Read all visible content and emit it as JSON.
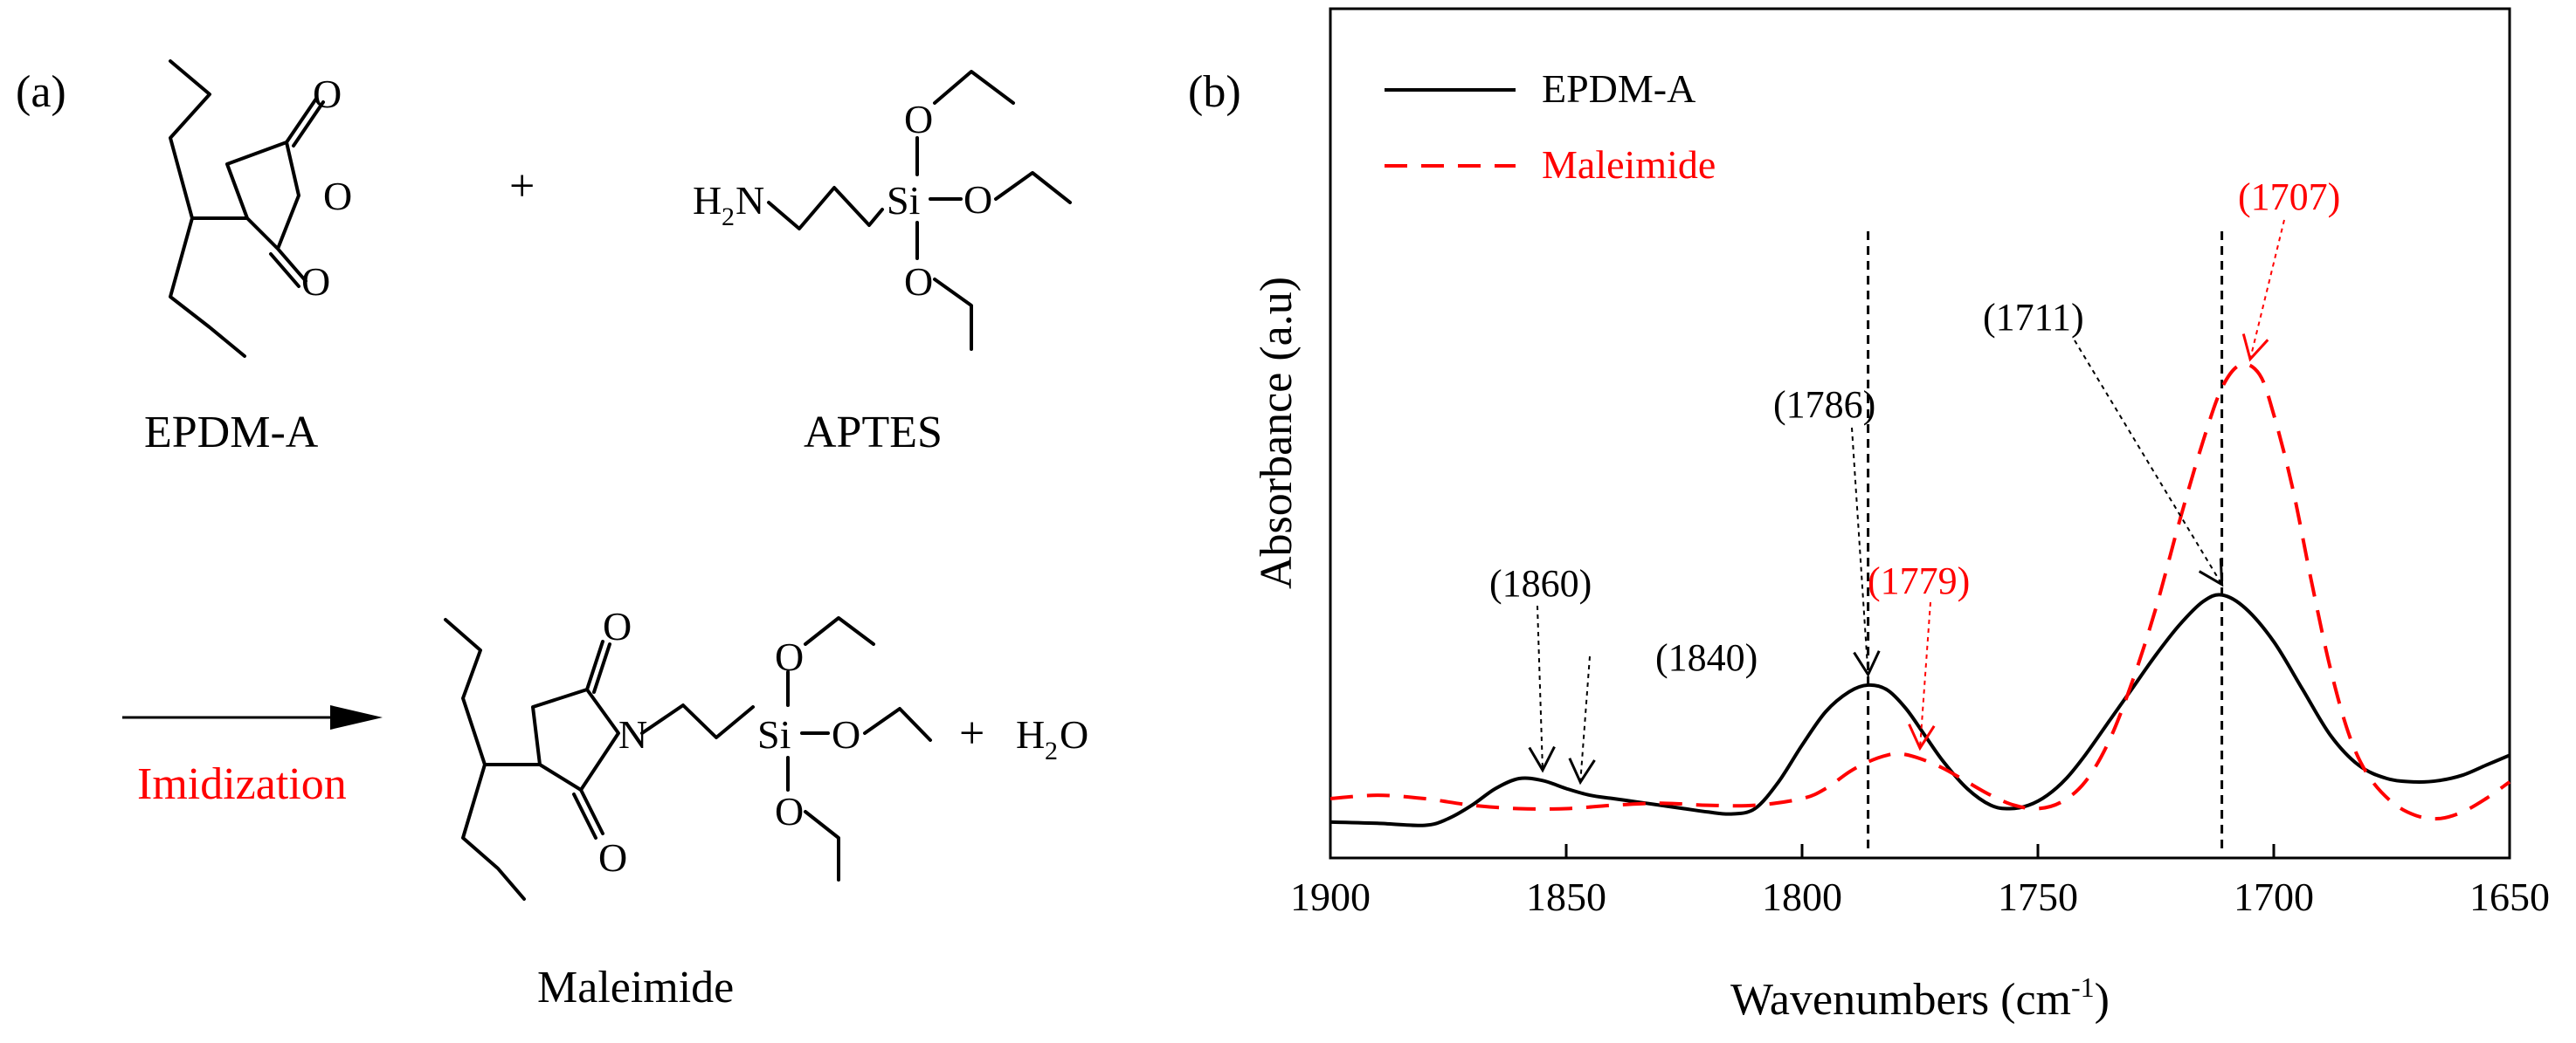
{
  "panel_a": {
    "label": "(a)",
    "reactant1": {
      "name": "EPDM-A",
      "atoms": {
        "o_top": "O",
        "o_ring": "O",
        "o_bottom": "O"
      }
    },
    "plus": "+",
    "reactant2": {
      "name": "APTES",
      "atoms": {
        "amine_h": "H",
        "amine_sub": "2",
        "amine_n": "N",
        "si": "Si",
        "o_top": "O",
        "o_right": "O",
        "o_bottom": "O"
      }
    },
    "reaction_label": "Imidization",
    "product": {
      "name": "Maleimide",
      "atoms": {
        "o_top": "O",
        "n": "N",
        "o_bottom": "O",
        "si": "Si",
        "o_top_si": "O",
        "o_right_si": "O",
        "o_bottom_si": "O"
      }
    },
    "plus2": "+",
    "water": {
      "h": "H",
      "sub": "2",
      "o": "O"
    }
  },
  "colors": {
    "epdm": "#000000",
    "maleimide": "#ff0000",
    "reaction_label": "#ff0000"
  },
  "chart_data": {
    "type": "line",
    "panel_label": "(b)",
    "xlabel": "Wavenumbers (cm",
    "xlabel_sup": "-1",
    "xlabel_end": ")",
    "ylabel": "Absorbance (a.u)",
    "xlim": [
      1900,
      1650
    ],
    "ylim": [
      0,
      1
    ],
    "x_ticks": [
      "1900",
      "1850",
      "1800",
      "1750",
      "1700",
      "1650"
    ],
    "x_tick_values": [
      1900,
      1850,
      1800,
      1750,
      1700,
      1650
    ],
    "legend": [
      {
        "name": "EPDM-A",
        "style": "solid",
        "color": "#000000"
      },
      {
        "name": "Maleimide",
        "style": "dashed",
        "color": "#ff0000"
      }
    ],
    "series": [
      {
        "name": "EPDM-A",
        "x": [
          1900,
          1890,
          1880,
          1875,
          1870,
          1865,
          1860,
          1855,
          1850,
          1845,
          1840,
          1835,
          1830,
          1825,
          1820,
          1815,
          1810,
          1805,
          1800,
          1795,
          1790,
          1786,
          1782,
          1778,
          1774,
          1770,
          1765,
          1760,
          1756,
          1752,
          1748,
          1744,
          1740,
          1735,
          1730,
          1725,
          1720,
          1715,
          1711,
          1706,
          1700,
          1694,
          1688,
          1682,
          1676,
          1670,
          1665,
          1660,
          1655,
          1650
        ],
        "values": [
          0.05,
          0.048,
          0.045,
          0.055,
          0.075,
          0.1,
          0.115,
          0.112,
          0.1,
          0.09,
          0.085,
          0.08,
          0.075,
          0.07,
          0.065,
          0.062,
          0.07,
          0.11,
          0.165,
          0.215,
          0.245,
          0.255,
          0.248,
          0.22,
          0.18,
          0.14,
          0.1,
          0.075,
          0.07,
          0.075,
          0.09,
          0.115,
          0.15,
          0.2,
          0.25,
          0.3,
          0.345,
          0.38,
          0.39,
          0.37,
          0.32,
          0.25,
          0.18,
          0.135,
          0.115,
          0.11,
          0.112,
          0.12,
          0.135,
          0.15
        ]
      },
      {
        "name": "Maleimide",
        "x": [
          1900,
          1890,
          1880,
          1870,
          1860,
          1850,
          1840,
          1830,
          1820,
          1810,
          1800,
          1795,
          1790,
          1786,
          1782,
          1779,
          1775,
          1770,
          1765,
          1760,
          1755,
          1750,
          1745,
          1740,
          1735,
          1730,
          1725,
          1720,
          1715,
          1711,
          1707,
          1703,
          1700,
          1696,
          1692,
          1688,
          1684,
          1680,
          1675,
          1670,
          1665,
          1660,
          1655,
          1650
        ],
        "values": [
          0.085,
          0.09,
          0.085,
          0.075,
          0.07,
          0.07,
          0.075,
          0.078,
          0.075,
          0.075,
          0.085,
          0.1,
          0.125,
          0.14,
          0.15,
          0.152,
          0.145,
          0.13,
          0.11,
          0.09,
          0.075,
          0.07,
          0.08,
          0.11,
          0.17,
          0.26,
          0.37,
          0.5,
          0.62,
          0.7,
          0.735,
          0.72,
          0.66,
          0.55,
          0.41,
          0.28,
          0.18,
          0.12,
          0.08,
          0.06,
          0.055,
          0.065,
          0.085,
          0.11
        ]
      }
    ],
    "vlines": [
      1786,
      1711
    ],
    "annotations": [
      {
        "text": "(1860)",
        "color": "#000000",
        "target_x": 1855,
        "target_series": 0
      },
      {
        "text": "(1840)",
        "color": "#000000",
        "target_x": 1847,
        "target_series": 0
      },
      {
        "text": "(1786)",
        "color": "#000000",
        "target_x": 1786,
        "target_series": 0
      },
      {
        "text": "(1779)",
        "color": "#ff0000",
        "target_x": 1775,
        "target_series": 1
      },
      {
        "text": "(1711)",
        "color": "#000000",
        "target_x": 1711,
        "target_series": 0
      },
      {
        "text": "(1707)",
        "color": "#ff0000",
        "target_x": 1705,
        "target_series": 1
      }
    ]
  }
}
